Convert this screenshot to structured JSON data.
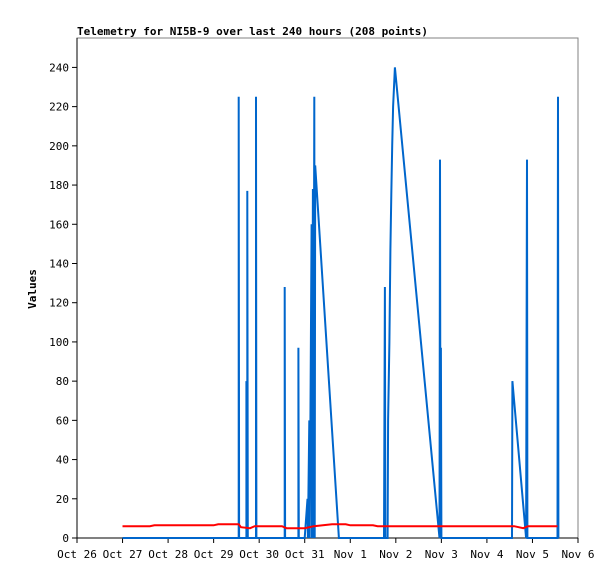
{
  "chart_data": {
    "type": "line",
    "title": "Telemetry for NI5B-9 over last 240 hours (208 points)",
    "xlabel": "",
    "ylabel": "Values",
    "x_unit": "days since Oct 26 00:00",
    "xlim": [
      0,
      11
    ],
    "ylim": [
      0,
      255
    ],
    "x_ticks": [
      {
        "x": 0,
        "label": "Oct 26"
      },
      {
        "x": 1,
        "label": "Oct 27"
      },
      {
        "x": 2,
        "label": "Oct 28"
      },
      {
        "x": 3,
        "label": "Oct 29"
      },
      {
        "x": 4,
        "label": "Oct 30"
      },
      {
        "x": 5,
        "label": "Oct 31"
      },
      {
        "x": 6,
        "label": "Nov 1"
      },
      {
        "x": 7,
        "label": "Nov 2"
      },
      {
        "x": 8,
        "label": "Nov 3"
      },
      {
        "x": 9,
        "label": "Nov 4"
      },
      {
        "x": 10,
        "label": "Nov 5"
      },
      {
        "x": 11,
        "label": "Nov 6"
      }
    ],
    "y_ticks": [
      0,
      20,
      40,
      60,
      80,
      100,
      120,
      140,
      160,
      180,
      200,
      220,
      240
    ],
    "grid": false,
    "legend": "none",
    "series": [
      {
        "color": "#0066cc",
        "points": [
          [
            1.0,
            0
          ],
          [
            3.55,
            0
          ],
          [
            3.55,
            225
          ],
          [
            3.56,
            0
          ],
          [
            3.72,
            0
          ],
          [
            3.72,
            80
          ],
          [
            3.73,
            0
          ],
          [
            3.74,
            0
          ],
          [
            3.74,
            177
          ],
          [
            3.75,
            0
          ],
          [
            3.93,
            0
          ],
          [
            3.93,
            225
          ],
          [
            3.94,
            0
          ],
          [
            4.56,
            0
          ],
          [
            4.56,
            128
          ],
          [
            4.57,
            0
          ],
          [
            4.86,
            0
          ],
          [
            4.86,
            97
          ],
          [
            4.87,
            0
          ],
          [
            5.0,
            0
          ],
          [
            5.06,
            20
          ],
          [
            5.07,
            0
          ],
          [
            5.1,
            60
          ],
          [
            5.11,
            0
          ],
          [
            5.15,
            160
          ],
          [
            5.16,
            0
          ],
          [
            5.18,
            178
          ],
          [
            5.19,
            0
          ],
          [
            5.21,
            225
          ],
          [
            5.22,
            0
          ],
          [
            5.23,
            190
          ],
          [
            5.75,
            0
          ],
          [
            6.74,
            0
          ],
          [
            6.76,
            128
          ],
          [
            6.77,
            0
          ],
          [
            6.82,
            0
          ],
          [
            6.83,
            60
          ],
          [
            6.86,
            100
          ],
          [
            6.88,
            147
          ],
          [
            6.9,
            175
          ],
          [
            6.92,
            200
          ],
          [
            6.94,
            220
          ],
          [
            6.98,
            240
          ],
          [
            7.96,
            0
          ],
          [
            7.97,
            193
          ],
          [
            7.98,
            0
          ],
          [
            7.99,
            97
          ],
          [
            8.0,
            0
          ],
          [
            9.55,
            0
          ],
          [
            9.56,
            80
          ],
          [
            9.86,
            0
          ],
          [
            9.88,
            193
          ],
          [
            9.89,
            0
          ],
          [
            10.55,
            0
          ],
          [
            10.56,
            225
          ],
          [
            10.57,
            0
          ]
        ]
      },
      {
        "color": "#ff0000",
        "points": [
          [
            1.0,
            6
          ],
          [
            1.6,
            6
          ],
          [
            1.7,
            6.5
          ],
          [
            3.0,
            6.5
          ],
          [
            3.1,
            7
          ],
          [
            3.55,
            7
          ],
          [
            3.6,
            5.5
          ],
          [
            3.8,
            5
          ],
          [
            3.9,
            6
          ],
          [
            4.5,
            6
          ],
          [
            4.6,
            5
          ],
          [
            5.0,
            5
          ],
          [
            5.2,
            6
          ],
          [
            5.4,
            6.5
          ],
          [
            5.6,
            7
          ],
          [
            5.9,
            7
          ],
          [
            6.0,
            6.5
          ],
          [
            6.5,
            6.5
          ],
          [
            6.6,
            6
          ],
          [
            9.6,
            6
          ],
          [
            9.8,
            5
          ],
          [
            9.9,
            6
          ],
          [
            10.55,
            6
          ]
        ]
      }
    ]
  }
}
